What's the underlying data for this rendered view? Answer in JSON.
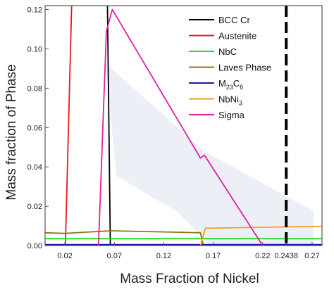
{
  "chart_data": {
    "type": "line",
    "title": "",
    "xlabel": "Mass Fraction of Nickel",
    "ylabel": "Mass fraction of Phase",
    "xlim": [
      0.0,
      0.28
    ],
    "ylim": [
      0.0,
      0.122
    ],
    "x_ticks": [
      0.02,
      0.07,
      0.12,
      0.17,
      0.22,
      0.2438,
      0.27
    ],
    "x_tick_labels": [
      "0.02",
      "0.07",
      "0.12",
      "0.17",
      "0.22",
      "0.2438",
      "0.27"
    ],
    "y_ticks": [
      0.0,
      0.02,
      0.04,
      0.06,
      0.08,
      0.1,
      0.12
    ],
    "y_tick_labels": [
      "0.00",
      "0.02",
      "0.04",
      "0.06",
      "0.08",
      "0.10",
      "0.12"
    ],
    "vertical_line": {
      "x": 0.2438,
      "style": "dashed",
      "color": "#000000"
    },
    "legend_position": "top-right",
    "series": [
      {
        "name": "BCC Cr",
        "color": "#000000",
        "points": [
          [
            0.063,
            0.125
          ],
          [
            0.066,
            0.0
          ]
        ]
      },
      {
        "name": "Austenite",
        "color": "#e8191b",
        "points": [
          [
            0.0205,
            0.0
          ],
          [
            0.027,
            0.125
          ]
        ]
      },
      {
        "name": "NbC",
        "color": "#22dd22",
        "points": [
          [
            0.0,
            0.0035
          ],
          [
            0.28,
            0.0035
          ]
        ]
      },
      {
        "name": "Laves Phase",
        "color": "#8b7a10",
        "points": [
          [
            0.0,
            0.0065
          ],
          [
            0.02,
            0.0062
          ],
          [
            0.066,
            0.0075
          ],
          [
            0.157,
            0.0065
          ],
          [
            0.16,
            0.0
          ]
        ]
      },
      {
        "name": "M23C6",
        "name_main": "M",
        "name_sub1": "23",
        "name_mid": "C",
        "name_sub2": "6",
        "color": "#1a1aa8",
        "points": [
          [
            0.0,
            0.0005
          ],
          [
            0.28,
            0.0005
          ]
        ]
      },
      {
        "name": "NbNi3",
        "name_main": "NbNi",
        "name_sub1": "3",
        "color": "#f0a020",
        "points": [
          [
            0.157,
            0.0
          ],
          [
            0.162,
            0.0088
          ],
          [
            0.28,
            0.0098
          ]
        ]
      },
      {
        "name": "Sigma",
        "color": "#e020a0",
        "points": [
          [
            0.054,
            0.0
          ],
          [
            0.058,
            0.055
          ],
          [
            0.062,
            0.109
          ],
          [
            0.068,
            0.12
          ],
          [
            0.157,
            0.0445
          ],
          [
            0.161,
            0.046
          ],
          [
            0.22,
            0.0
          ]
        ]
      }
    ]
  }
}
